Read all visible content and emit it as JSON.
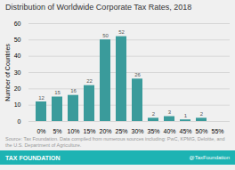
{
  "chart_data": {
    "type": "bar",
    "title": "Distribution of Worldwide Corporate Tax Rates, 2018",
    "ylabel": "Number of Countries",
    "categories": [
      "0%",
      "5%",
      "10%",
      "15%",
      "20%",
      "25%",
      "30%",
      "35%",
      "40%",
      "45%",
      "50%",
      "55%"
    ],
    "values": [
      12,
      15,
      16,
      22,
      50,
      52,
      26,
      2,
      3,
      1,
      2,
      0
    ],
    "data_labels": true,
    "value_labels": [
      "12",
      "15",
      "16",
      "22",
      "50",
      "52",
      "26",
      "2",
      "3",
      "1",
      "2",
      null
    ],
    "color": "#3a9b9b",
    "ylim": [
      0,
      60
    ],
    "yticks": [
      0,
      10,
      20,
      30,
      40,
      50,
      60
    ],
    "grid": true,
    "source": "Source: Tax Foundation. Data compiled from numerous sources including: PwC, KPMG, Deloitte, and the U.S. Department of Agriculture.",
    "annotations": [
      "TAX FOUNDATION",
      "@TaxFoundation"
    ]
  }
}
